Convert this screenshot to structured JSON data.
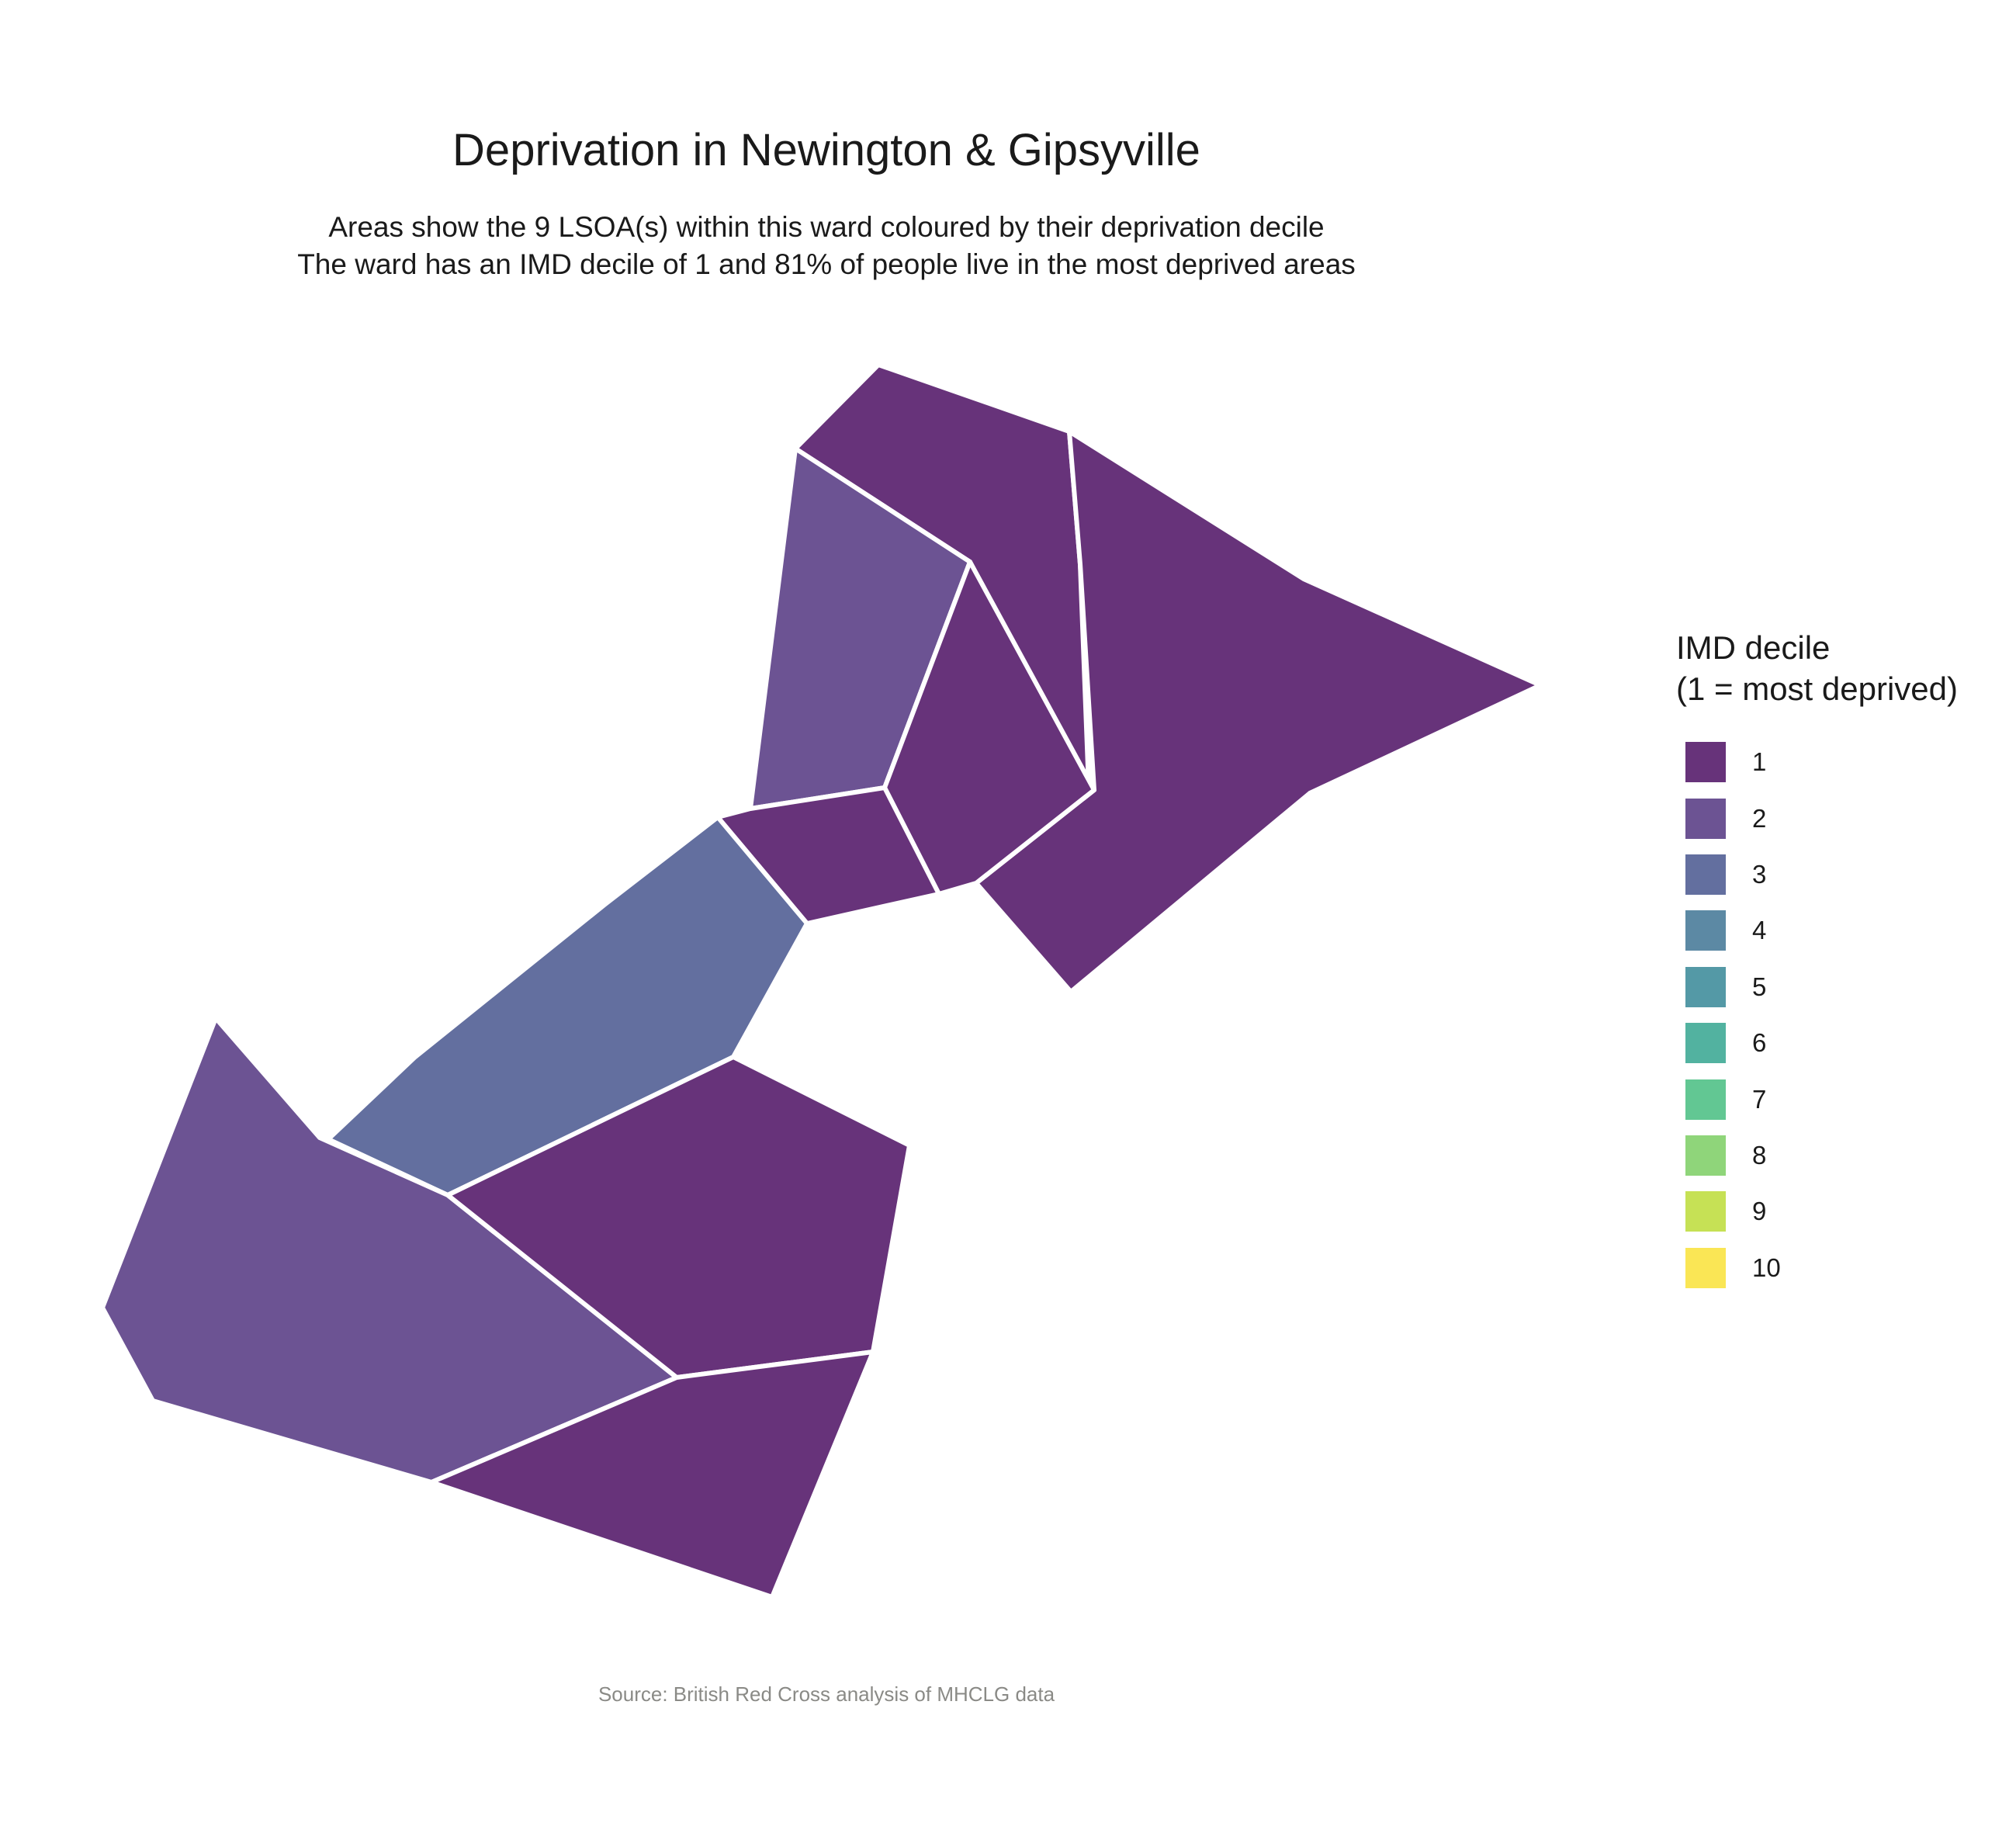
{
  "title": "Deprivation in Newington & Gipsyville",
  "subtitle_line1": "Areas show the 9 LSOA(s) within this ward coloured by their deprivation decile",
  "subtitle_line2": "The ward has an IMD decile of 1 and 81% of people live in the most deprived areas",
  "caption": "Source: British Red Cross analysis of MHCLG data",
  "legend": {
    "title_line1": "IMD decile",
    "title_line2": "(1 = most deprived)",
    "items": [
      {
        "label": "1",
        "color": "#67337A"
      },
      {
        "label": "2",
        "color": "#6C5393"
      },
      {
        "label": "3",
        "color": "#636F9F"
      },
      {
        "label": "4",
        "color": "#5C89A4"
      },
      {
        "label": "5",
        "color": "#5499A6"
      },
      {
        "label": "6",
        "color": "#52B2A0"
      },
      {
        "label": "7",
        "color": "#62C793"
      },
      {
        "label": "8",
        "color": "#8FD57A"
      },
      {
        "label": "9",
        "color": "#C6E155"
      },
      {
        "label": "10",
        "color": "#FAE655"
      }
    ]
  },
  "areas": [
    {
      "name": "lsoa-north-top",
      "decile": 1
    },
    {
      "name": "lsoa-east-large",
      "decile": 1
    },
    {
      "name": "lsoa-north-west",
      "decile": 2
    },
    {
      "name": "lsoa-north-middle",
      "decile": 1
    },
    {
      "name": "lsoa-north-small",
      "decile": 1
    },
    {
      "name": "lsoa-centre-diagonal",
      "decile": 3
    },
    {
      "name": "lsoa-south-west",
      "decile": 2
    },
    {
      "name": "lsoa-south-middle",
      "decile": 1
    },
    {
      "name": "lsoa-south-bottom",
      "decile": 1
    }
  ]
}
